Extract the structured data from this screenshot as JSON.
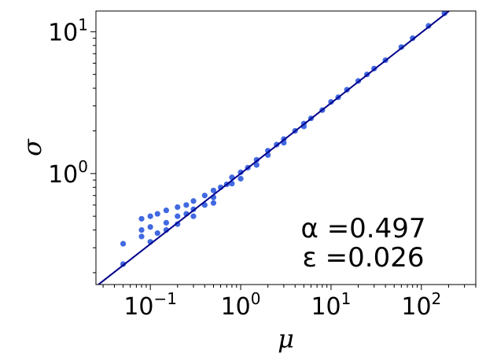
{
  "chart_data": {
    "type": "scatter",
    "title": "",
    "xlabel": "μ",
    "ylabel": "σ",
    "xscale": "log",
    "yscale": "log",
    "xlim": [
      0.025,
      400
    ],
    "ylim": [
      0.165,
      14
    ],
    "grid": false,
    "point_color": "#4169e1",
    "line_color": "#00008b",
    "x_ticks": [
      {
        "value": 0.1,
        "base": "10",
        "exp": "−1"
      },
      {
        "value": 1,
        "base": "10",
        "exp": "0"
      },
      {
        "value": 10,
        "base": "10",
        "exp": "1"
      },
      {
        "value": 100,
        "base": "10",
        "exp": "2"
      }
    ],
    "y_ticks": [
      {
        "value": 1,
        "base": "10",
        "exp": "0"
      },
      {
        "value": 10,
        "base": "10",
        "exp": "1"
      }
    ],
    "fit_line": {
      "slope": 0.497,
      "intercept": 0.0,
      "x_range": [
        0.025,
        400
      ]
    },
    "scatter_points": {
      "x": [
        0.05,
        0.05,
        0.08,
        0.08,
        0.08,
        0.1,
        0.1,
        0.1,
        0.12,
        0.12,
        0.15,
        0.15,
        0.15,
        0.2,
        0.2,
        0.2,
        0.25,
        0.25,
        0.3,
        0.3,
        0.3,
        0.4,
        0.4,
        0.5,
        0.5,
        0.5,
        0.6,
        0.7,
        0.8,
        0.8,
        1.0,
        1.0,
        1.2,
        1.5,
        1.5,
        2.0,
        2.0,
        2.5,
        3.0,
        3.0,
        4.0,
        5.0,
        5.0,
        6.0,
        8.0,
        10,
        12,
        15,
        20,
        25,
        30,
        40,
        60,
        80,
        120,
        180
      ],
      "y": [
        0.32,
        0.23,
        0.48,
        0.4,
        0.36,
        0.5,
        0.42,
        0.33,
        0.52,
        0.38,
        0.55,
        0.45,
        0.4,
        0.58,
        0.5,
        0.44,
        0.6,
        0.52,
        0.64,
        0.56,
        0.5,
        0.7,
        0.6,
        0.76,
        0.68,
        0.62,
        0.8,
        0.84,
        0.94,
        0.85,
        1.02,
        0.92,
        1.1,
        1.25,
        1.15,
        1.45,
        1.35,
        1.6,
        1.75,
        1.65,
        2.0,
        2.25,
        2.15,
        2.45,
        2.8,
        3.2,
        3.45,
        3.9,
        4.5,
        5.0,
        5.5,
        6.3,
        7.8,
        9.0,
        11.0,
        13.5
      ]
    }
  },
  "annotation": {
    "alpha_text": "α =0.497",
    "epsilon_text": "ε =0.026"
  }
}
